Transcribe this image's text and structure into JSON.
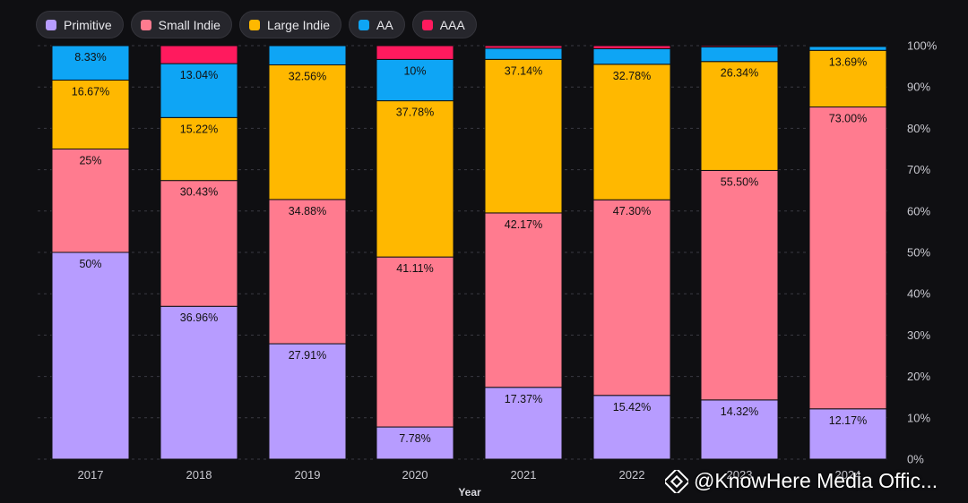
{
  "chart_data": {
    "type": "bar",
    "stacked": true,
    "normalized": true,
    "categories": [
      "2017",
      "2018",
      "2019",
      "2020",
      "2021",
      "2022",
      "2023",
      "2024"
    ],
    "xlabel": "Year",
    "ylabel": "",
    "ylim": [
      0,
      100
    ],
    "y_ticks": [
      "0%",
      "10%",
      "20%",
      "30%",
      "40%",
      "50%",
      "60%",
      "70%",
      "80%",
      "90%",
      "100%"
    ],
    "y_axis_position": "right",
    "legend_position": "top-left",
    "grid": true,
    "series": [
      {
        "name": "Primitive",
        "color": "#b79cff",
        "values": [
          50,
          36.96,
          27.91,
          7.78,
          17.37,
          15.42,
          14.32,
          12.17
        ],
        "labels": [
          "50%",
          "36.96%",
          "27.91%",
          "7.78%",
          "17.37%",
          "15.42%",
          "14.32%",
          "12.17%"
        ]
      },
      {
        "name": "Small Indie",
        "color": "#ff7b8f",
        "values": [
          25,
          30.43,
          34.88,
          41.11,
          42.17,
          47.3,
          55.5,
          73.0
        ],
        "labels": [
          "25%",
          "30.43%",
          "34.88%",
          "41.11%",
          "42.17%",
          "47.30%",
          "55.50%",
          "73.00%"
        ]
      },
      {
        "name": "Large Indie",
        "color": "#ffb800",
        "values": [
          16.67,
          15.22,
          32.56,
          37.78,
          37.14,
          32.78,
          26.34,
          13.69
        ],
        "labels": [
          "16.67%",
          "15.22%",
          "32.56%",
          "37.78%",
          "37.14%",
          "32.78%",
          "26.34%",
          "13.69%"
        ]
      },
      {
        "name": "AA",
        "color": "#0ea5f5",
        "values": [
          8.33,
          13.04,
          4.65,
          10,
          2.68,
          3.75,
          3.54,
          0.96
        ],
        "labels": [
          "8.33%",
          "13.04%",
          "",
          "10%",
          "",
          "",
          "",
          ""
        ]
      },
      {
        "name": "AAA",
        "color": "#ff1a5e",
        "values": [
          0,
          4.35,
          0,
          3.33,
          0.64,
          0.75,
          0.3,
          0.18
        ],
        "labels": [
          "",
          "",
          "",
          "",
          "",
          "",
          "",
          ""
        ]
      }
    ]
  },
  "watermark": {
    "text": "@KnowHere Media Offic..."
  }
}
